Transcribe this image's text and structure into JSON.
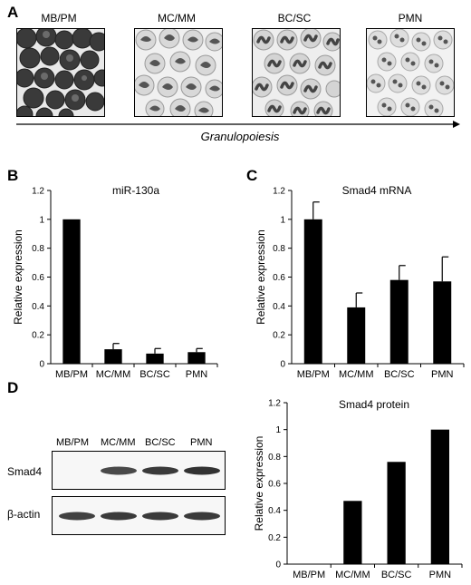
{
  "panel_a": {
    "label": "A",
    "stages": [
      "MB/PM",
      "MC/MM",
      "BC/SC",
      "PMN"
    ],
    "arrow_label": "Granulopoiesis"
  },
  "panel_d": {
    "label": "D",
    "lanes": [
      "MB/PM",
      "MC/MM",
      "BC/SC",
      "PMN"
    ],
    "rows": [
      "Smad4",
      "β-actin"
    ],
    "smad4_band_intensity": [
      0.0,
      0.85,
      0.95,
      1.0
    ],
    "actin_band_intensity": [
      0.9,
      0.95,
      0.95,
      0.95
    ]
  },
  "chart_data": [
    {
      "panel": "B",
      "type": "bar",
      "title": "miR-130a",
      "ylabel": "Relative expression",
      "xlabel": "",
      "categories": [
        "MB/PM",
        "MC/MM",
        "BC/SC",
        "PMN"
      ],
      "values": [
        1.0,
        0.1,
        0.07,
        0.08
      ],
      "errors": [
        0,
        0.04,
        0.035,
        0.025
      ],
      "ylim": [
        0,
        1.2
      ],
      "yticks": [
        "0",
        "0.2",
        "0.4",
        "0.6",
        "0.8",
        "1",
        "1.2"
      ],
      "color": "#000000"
    },
    {
      "panel": "C",
      "type": "bar",
      "title": "Smad4 mRNA",
      "ylabel": "Relative expression",
      "xlabel": "",
      "categories": [
        "MB/PM",
        "MC/MM",
        "BC/SC",
        "PMN"
      ],
      "values": [
        1.0,
        0.39,
        0.58,
        0.57
      ],
      "errors": [
        0.12,
        0.1,
        0.1,
        0.17
      ],
      "ylim": [
        0,
        1.2
      ],
      "yticks": [
        "0",
        "0.2",
        "0.4",
        "0.6",
        "0.8",
        "1",
        "1.2"
      ],
      "color": "#000000"
    },
    {
      "panel": "D",
      "type": "bar",
      "title": "Smad4 protein",
      "ylabel": "Relative expression",
      "xlabel": "",
      "categories": [
        "MB/PM",
        "MC/MM",
        "BC/SC",
        "PMN"
      ],
      "values": [
        0.0,
        0.47,
        0.76,
        1.0
      ],
      "errors": [
        0,
        0,
        0,
        0
      ],
      "ylim": [
        0,
        1.2
      ],
      "yticks": [
        "0",
        "0.2",
        "0.4",
        "0.6",
        "0.8",
        "1",
        "1.2"
      ],
      "color": "#000000"
    }
  ]
}
